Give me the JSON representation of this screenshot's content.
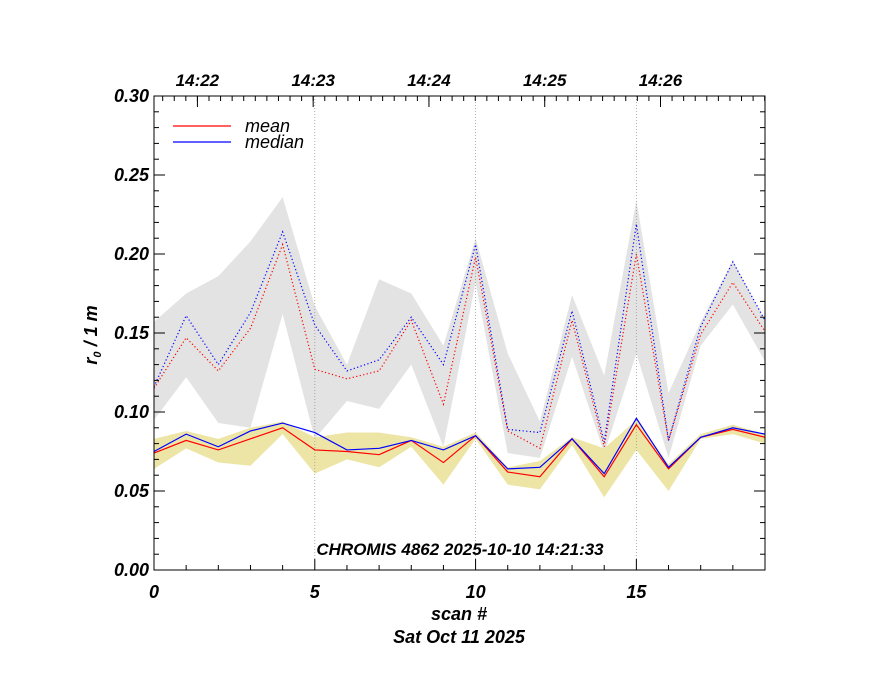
{
  "chart_data": {
    "type": "line",
    "title": "",
    "annotation": "CHROMIS 4862 2025-10-10 14:21:33",
    "xlabel": "scan #",
    "xlabel2": "Sat Oct 11 2025",
    "ylabel_main": "r",
    "ylabel_sub": "0",
    "ylabel_rest": " / 1 m",
    "xlim": [
      0,
      19
    ],
    "ylim": [
      0.0,
      0.3
    ],
    "x_ticks": [
      0,
      5,
      10,
      15
    ],
    "x_tick_labels": [
      "0",
      "5",
      "10",
      "15"
    ],
    "y_ticks": [
      0.0,
      0.05,
      0.1,
      0.15,
      0.2,
      0.25,
      0.3
    ],
    "y_tick_labels": [
      "0.00",
      "0.05",
      "0.10",
      "0.15",
      "0.20",
      "0.25",
      "0.30"
    ],
    "top_axis": {
      "labels": [
        "14:22",
        "14:23",
        "14:24",
        "14:25",
        "14:26"
      ],
      "positions": [
        1.35,
        4.95,
        8.55,
        12.15,
        15.75
      ]
    },
    "vlines": [
      5,
      10,
      15
    ],
    "x": [
      0,
      1,
      2,
      3,
      4,
      5,
      6,
      7,
      8,
      9,
      10,
      11,
      12,
      13,
      14,
      15,
      16,
      17,
      18,
      19
    ],
    "bands": [
      {
        "name": "upper range",
        "color": "#e3e3e3",
        "upper": [
          0.157,
          0.175,
          0.186,
          0.208,
          0.236,
          0.167,
          0.13,
          0.184,
          0.175,
          0.142,
          0.21,
          0.137,
          0.094,
          0.174,
          0.123,
          0.234,
          0.112,
          0.157,
          0.196,
          0.158
        ],
        "lower": [
          0.095,
          0.122,
          0.093,
          0.09,
          0.162,
          0.083,
          0.107,
          0.102,
          0.13,
          0.078,
          0.182,
          0.074,
          0.071,
          0.135,
          0.074,
          0.137,
          0.071,
          0.142,
          0.168,
          0.132
        ]
      },
      {
        "name": "lower range",
        "color": "#ede5a6",
        "upper": [
          0.083,
          0.088,
          0.083,
          0.09,
          0.094,
          0.084,
          0.087,
          0.087,
          0.084,
          0.078,
          0.087,
          0.065,
          0.069,
          0.084,
          0.077,
          0.095,
          0.067,
          0.086,
          0.092,
          0.086
        ],
        "lower": [
          0.064,
          0.077,
          0.068,
          0.066,
          0.086,
          0.061,
          0.07,
          0.065,
          0.078,
          0.054,
          0.083,
          0.054,
          0.051,
          0.079,
          0.046,
          0.076,
          0.05,
          0.083,
          0.086,
          0.08
        ]
      }
    ],
    "series": [
      {
        "name": "mean",
        "color": "#ff0000",
        "dash": "dotted",
        "legend": false,
        "values": [
          0.115,
          0.147,
          0.126,
          0.153,
          0.206,
          0.127,
          0.121,
          0.126,
          0.158,
          0.105,
          0.198,
          0.088,
          0.077,
          0.158,
          0.078,
          0.2,
          0.082,
          0.149,
          0.182,
          0.151
        ]
      },
      {
        "name": "median",
        "color": "#0000ff",
        "dash": "dotted",
        "legend": false,
        "values": [
          0.116,
          0.161,
          0.13,
          0.163,
          0.214,
          0.155,
          0.126,
          0.133,
          0.16,
          0.13,
          0.206,
          0.089,
          0.087,
          0.164,
          0.081,
          0.219,
          0.082,
          0.154,
          0.195,
          0.158
        ]
      },
      {
        "name": "mean",
        "color": "#ff0000",
        "dash": "solid",
        "legend": true,
        "values": [
          0.074,
          0.082,
          0.076,
          0.083,
          0.09,
          0.076,
          0.075,
          0.073,
          0.082,
          0.068,
          0.085,
          0.062,
          0.059,
          0.083,
          0.059,
          0.092,
          0.064,
          0.084,
          0.089,
          0.084
        ]
      },
      {
        "name": "median",
        "color": "#0000ff",
        "dash": "solid",
        "legend": true,
        "values": [
          0.075,
          0.086,
          0.078,
          0.088,
          0.093,
          0.087,
          0.076,
          0.077,
          0.082,
          0.076,
          0.085,
          0.064,
          0.065,
          0.083,
          0.061,
          0.096,
          0.065,
          0.084,
          0.09,
          0.086
        ]
      }
    ],
    "legend": {
      "placement": "top-left",
      "entries": [
        {
          "label": "mean",
          "color": "#ff0000"
        },
        {
          "label": "median",
          "color": "#0000ff"
        }
      ]
    }
  }
}
